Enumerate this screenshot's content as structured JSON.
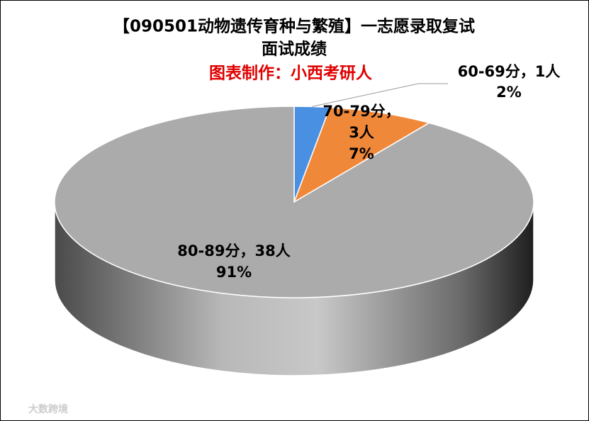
{
  "chart_data": {
    "type": "pie",
    "title_lines": [
      "【090501动物遗传育种与繁殖】一志愿录取复试",
      "面试成绩"
    ],
    "subtitle": "图表制作：小西考研人",
    "categories": [
      "60-69分",
      "70-79分",
      "80-89分"
    ],
    "label_separator": "，",
    "values": [
      1,
      3,
      38
    ],
    "value_labels": [
      "1人",
      "3人",
      "38人"
    ],
    "percent_labels": [
      "2%",
      "7%",
      "91%"
    ],
    "colors": [
      "#4a90e2",
      "#f0883a",
      "#ababab"
    ],
    "watermark": "大数跨境"
  }
}
